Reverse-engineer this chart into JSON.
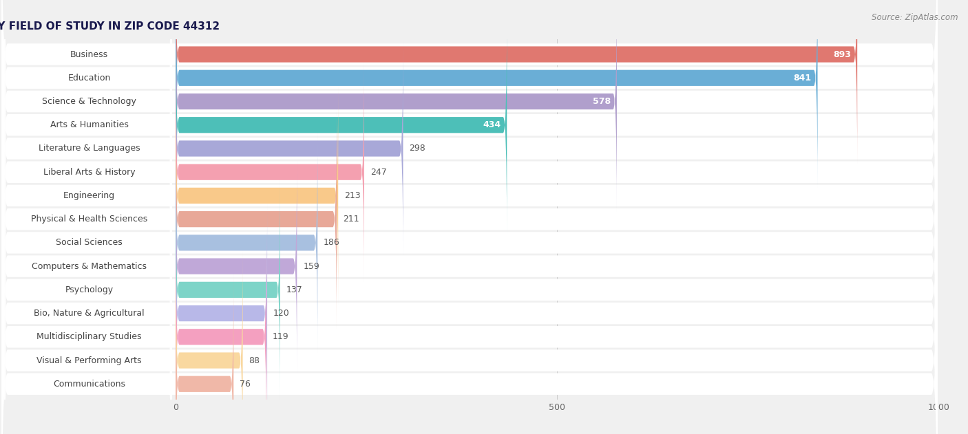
{
  "source": "Source: ZipAtlas.com",
  "categories": [
    "Business",
    "Education",
    "Science & Technology",
    "Arts & Humanities",
    "Literature & Languages",
    "Liberal Arts & History",
    "Engineering",
    "Physical & Health Sciences",
    "Social Sciences",
    "Computers & Mathematics",
    "Psychology",
    "Bio, Nature & Agricultural",
    "Multidisciplinary Studies",
    "Visual & Performing Arts",
    "Communications"
  ],
  "values": [
    893,
    841,
    578,
    434,
    298,
    247,
    213,
    211,
    186,
    159,
    137,
    120,
    119,
    88,
    76
  ],
  "bar_colors": [
    "#e07870",
    "#6aaed6",
    "#b09fcc",
    "#4dbfb8",
    "#a8a8d8",
    "#f4a0b0",
    "#f9c98a",
    "#e8a898",
    "#a8c0e0",
    "#c0a8d8",
    "#7dd4c8",
    "#b8b8e8",
    "#f4a0c0",
    "#f9d8a0",
    "#f0b8a8"
  ],
  "value_inside_threshold": 300,
  "xlim": [
    0,
    1000
  ],
  "xticks": [
    0,
    500,
    1000
  ],
  "background_color": "#f0f0f0",
  "row_bg_color": "#ffffff",
  "title_fontsize": 11,
  "label_fontsize": 9,
  "value_fontsize": 9,
  "source_fontsize": 8.5
}
